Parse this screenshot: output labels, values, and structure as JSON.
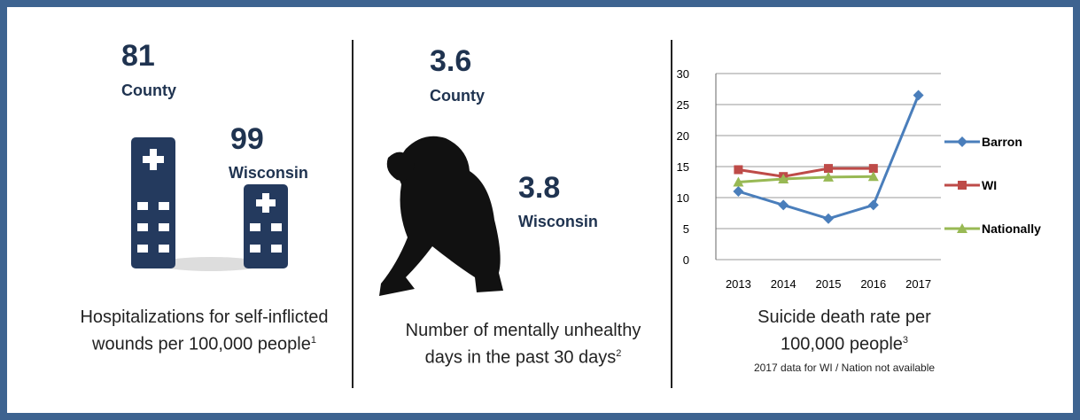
{
  "panels": [
    {
      "stats": [
        {
          "value": 81,
          "label": "County"
        },
        {
          "value": 99,
          "label": "Wisconsin"
        }
      ],
      "caption": "Hospitalizations for self-inflicted wounds per 100,000 people",
      "footnote": "1"
    },
    {
      "stats": [
        {
          "value": 3.6,
          "label": "County"
        },
        {
          "value": 3.8,
          "label": "Wisconsin"
        }
      ],
      "caption": "Number of mentally unhealthy days in the past 30 days",
      "footnote": "2"
    }
  ],
  "chart_data": {
    "type": "line",
    "categories": [
      "2013",
      "2014",
      "2015",
      "2016",
      "2017"
    ],
    "series": [
      {
        "name": "Barron",
        "color": "#4a7ebb",
        "marker": "diamond",
        "values": [
          11,
          8.8,
          6.6,
          8.8,
          26.5
        ]
      },
      {
        "name": "WI",
        "color": "#be4b48",
        "marker": "square",
        "values": [
          14.5,
          13.4,
          14.7,
          14.7,
          null
        ]
      },
      {
        "name": "Nationally",
        "color": "#98b954",
        "marker": "triangle",
        "values": [
          12.5,
          13,
          13.3,
          13.4,
          null
        ]
      }
    ],
    "ylim": [
      0,
      30
    ],
    "yticks": [
      0,
      5,
      10,
      15,
      20,
      25,
      30
    ],
    "grid": true,
    "legend": "right",
    "caption": "Suicide death rate per 100,000 people",
    "footnote": "3",
    "note": "2017 data for WI / Nation not available"
  }
}
